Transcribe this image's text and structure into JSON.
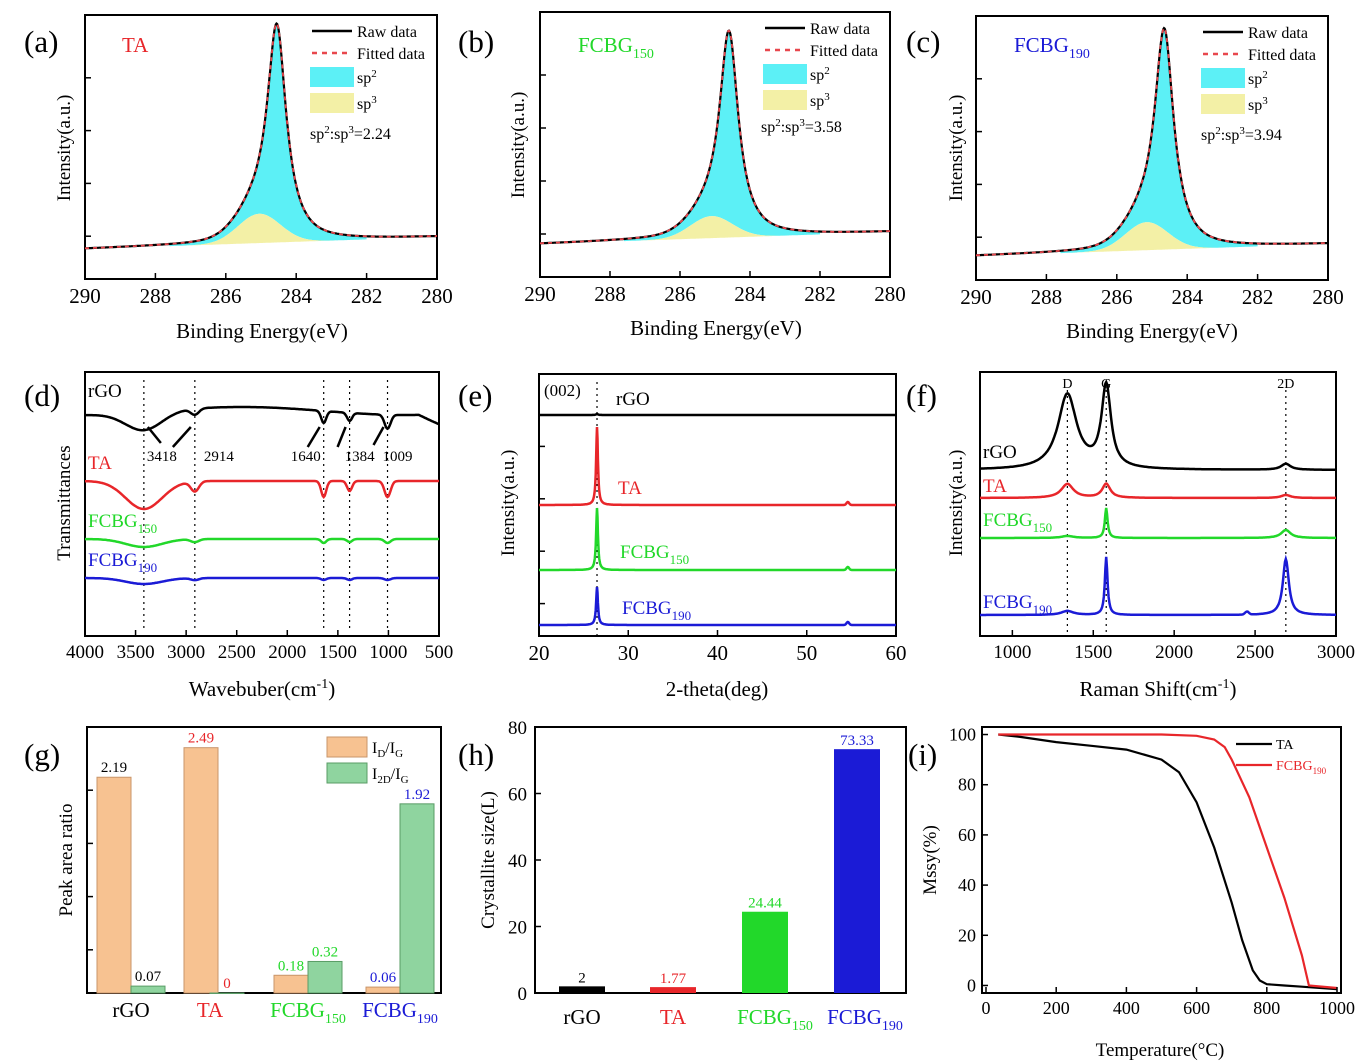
{
  "colors": {
    "black": "#000000",
    "red": "#e8262a",
    "green": "#22d82a",
    "blue": "#1b1bd6",
    "cyan": "#5cf0f6",
    "yellow": "#f3f0a6",
    "orange": "#f7c291",
    "mint": "#8fd49f",
    "fitted": "#e8474d"
  },
  "chart_data": [
    {
      "id": "a",
      "panel_label": "(a)",
      "type": "line",
      "sample": "TA",
      "xlabel": "Binding Energy(eV)",
      "ylabel": "Intensity(a.u.)",
      "xlim": [
        290,
        280
      ],
      "xticks": [
        "290",
        "288",
        "286",
        "284",
        "282",
        "280"
      ],
      "legend": [
        "Raw data",
        "Fitted data",
        "sp",
        "sp"
      ],
      "legend_sup": [
        "",
        "",
        "2",
        "3"
      ],
      "ratio_text": "sp2:sp3=2.24",
      "ratio_parts": [
        "sp",
        "2",
        ":sp",
        "3",
        "=2.24"
      ],
      "peak_center": 284.55,
      "peak_height": 0.92,
      "sp3_height": 0.13
    },
    {
      "id": "b",
      "panel_label": "(b)",
      "type": "line",
      "sample": "FCBG",
      "sample_sub": "150",
      "xlabel": "Binding Energy(eV)",
      "ylabel": "Intensity(a.u.)",
      "xlim": [
        290,
        280
      ],
      "xticks": [
        "290",
        "288",
        "286",
        "284",
        "282",
        "280"
      ],
      "legend": [
        "Raw data",
        "Fitted data",
        "sp",
        "sp"
      ],
      "legend_sup": [
        "",
        "",
        "2",
        "3"
      ],
      "ratio_text": "sp2:sp3=3.58",
      "ratio_parts": [
        "sp",
        "2",
        ":sp",
        "3",
        "=3.58"
      ],
      "peak_center": 284.6,
      "peak_height": 0.9,
      "sp3_height": 0.1
    },
    {
      "id": "c",
      "panel_label": "(c)",
      "type": "line",
      "sample": "FCBG",
      "sample_sub": "190",
      "xlabel": "Binding Energy(eV)",
      "ylabel": "Intensity(a.u.)",
      "xlim": [
        290,
        280
      ],
      "xticks": [
        "290",
        "288",
        "286",
        "284",
        "282",
        "280"
      ],
      "legend": [
        "Raw data",
        "Fitted data",
        "sp",
        "sp"
      ],
      "legend_sup": [
        "",
        "",
        "2",
        "3"
      ],
      "ratio_text": "sp2:sp3=3.94",
      "ratio_parts": [
        "sp",
        "2",
        ":sp",
        "3",
        "=3.94"
      ],
      "peak_center": 284.65,
      "peak_height": 0.9,
      "sp3_height": 0.12
    },
    {
      "id": "d",
      "panel_label": "(d)",
      "type": "line",
      "xlabel": "Wavebuber(cm",
      "xlabel_sup": "-1",
      "xlabel_end": ")",
      "ylabel": "Transmittances",
      "xlim": [
        4000,
        500
      ],
      "xticks": [
        "4000",
        "3500",
        "3000",
        "2500",
        "2000",
        "1500",
        "1000",
        "500"
      ],
      "series": [
        {
          "name": "rGO"
        },
        {
          "name": "TA"
        },
        {
          "name": "FCBG",
          "sub": "150"
        },
        {
          "name": "FCBG",
          "sub": "190"
        }
      ],
      "peaks": [
        3418,
        2914,
        1640,
        1384,
        1009
      ],
      "peak_labels": [
        "3418",
        "2914",
        "1640",
        "1384",
        "1009"
      ]
    },
    {
      "id": "e",
      "panel_label": "(e)",
      "type": "line",
      "xlabel": "2-theta(deg)",
      "ylabel": "Intensity(a.u.)",
      "xlim": [
        20,
        60
      ],
      "xticks": [
        "20",
        "30",
        "40",
        "50",
        "60"
      ],
      "annotation": "(002)",
      "peak_x": 26.5,
      "series": [
        {
          "name": "rGO"
        },
        {
          "name": "TA"
        },
        {
          "name": "FCBG",
          "sub": "150"
        },
        {
          "name": "FCBG",
          "sub": "190"
        }
      ]
    },
    {
      "id": "f",
      "panel_label": "(f)",
      "type": "line",
      "xlabel": "Raman Shift(cm",
      "xlabel_sup": "-1",
      "xlabel_end": ")",
      "ylabel": "Intensity(a.u.)",
      "xlim": [
        800,
        3000
      ],
      "xticks": [
        "1000",
        "1500",
        "2000",
        "2500",
        "3000"
      ],
      "bands": [
        "D",
        "G",
        "2D"
      ],
      "band_positions": [
        1340,
        1580,
        2690
      ],
      "series": [
        {
          "name": "rGO"
        },
        {
          "name": "TA"
        },
        {
          "name": "FCBG",
          "sub": "150"
        },
        {
          "name": "FCBG",
          "sub": "190"
        }
      ]
    },
    {
      "id": "g",
      "panel_label": "(g)",
      "type": "bar",
      "ylabel": "Peak area ratio",
      "ylim": [
        0,
        2.7
      ],
      "categories": [
        "rGO",
        "TA",
        "FCBG",
        "FCBG"
      ],
      "category_subs": [
        "",
        "",
        "150",
        "190"
      ],
      "series": [
        {
          "name": "I",
          "name_sub1": "D",
          "name_mid": "/I",
          "name_sub2": "G",
          "values": [
            2.19,
            2.49,
            0.18,
            0.06
          ],
          "labels": [
            "2.19",
            "2.49",
            "0.18",
            "0.06"
          ]
        },
        {
          "name": "I",
          "name_sub1": "2D",
          "name_mid": "/I",
          "name_sub2": "G",
          "values": [
            0.07,
            0,
            0.32,
            1.92
          ],
          "labels": [
            "0.07",
            "0",
            "0.32",
            "1.92"
          ]
        }
      ]
    },
    {
      "id": "h",
      "panel_label": "(h)",
      "type": "bar",
      "ylabel": "Crystallite size(L)",
      "ylim": [
        0,
        80
      ],
      "yticks": [
        "0",
        "20",
        "40",
        "60",
        "80"
      ],
      "categories": [
        "rGO",
        "TA",
        "FCBG",
        "FCBG"
      ],
      "category_subs": [
        "",
        "",
        "150",
        "190"
      ],
      "values": [
        2,
        1.77,
        24.44,
        73.33
      ],
      "labels": [
        "2",
        "1.77",
        "24.44",
        "73.33"
      ]
    },
    {
      "id": "i",
      "panel_label": "(i)",
      "type": "line",
      "xlabel": "Temperature(°C)",
      "ylabel": "Mssy(%)",
      "xlim": [
        0,
        1000
      ],
      "ylim": [
        -3,
        103
      ],
      "xticks": [
        "0",
        "200",
        "400",
        "600",
        "800",
        "1000"
      ],
      "yticks": [
        "0",
        "20",
        "40",
        "60",
        "80",
        "100"
      ],
      "series": [
        {
          "name": "TA",
          "x": [
            35,
            100,
            200,
            300,
            400,
            500,
            550,
            600,
            650,
            700,
            730,
            760,
            780,
            800,
            850,
            900,
            1000
          ],
          "y": [
            100,
            99,
            97,
            95.5,
            94,
            90,
            85,
            73,
            55,
            33,
            18,
            6,
            2,
            0.5,
            0,
            -0.5,
            -1.5
          ]
        },
        {
          "name": "FCBG",
          "sub": "190",
          "x": [
            35,
            100,
            200,
            300,
            400,
            500,
            600,
            650,
            680,
            700,
            750,
            800,
            850,
            900,
            920,
            1000
          ],
          "y": [
            100,
            100,
            100,
            100,
            100,
            100,
            99.5,
            98,
            95,
            90,
            75,
            55,
            35,
            12,
            0,
            -1
          ]
        }
      ]
    }
  ]
}
